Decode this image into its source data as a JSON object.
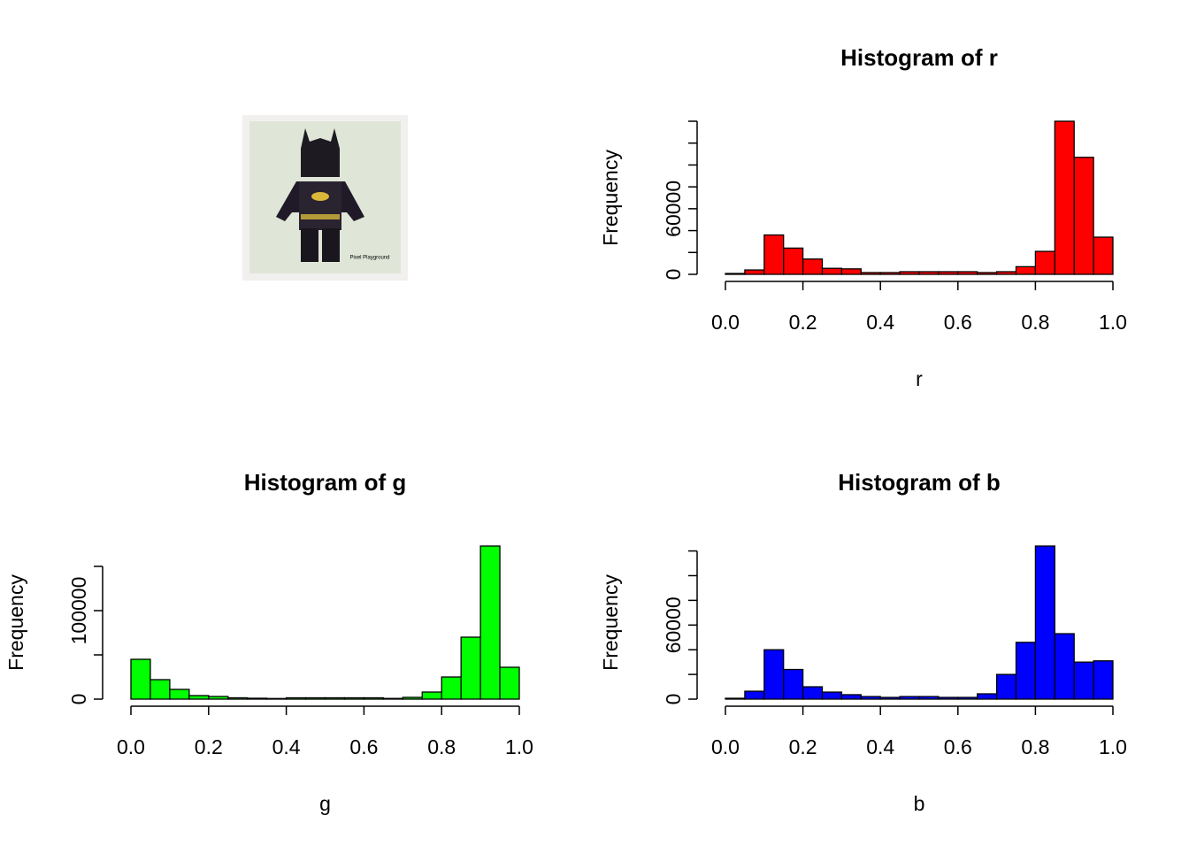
{
  "image": {
    "watermark": "Pixel Playground"
  },
  "chart_data": [
    {
      "type": "histogram",
      "title": "Histogram of r",
      "xlabel": "r",
      "ylabel": "Frequency",
      "color": "#ff0000",
      "bins": [
        0,
        0.05,
        0.1,
        0.15,
        0.2,
        0.25,
        0.3,
        0.35,
        0.4,
        0.45,
        0.5,
        0.55,
        0.6,
        0.65,
        0.7,
        0.75,
        0.8,
        0.85,
        0.9,
        0.95,
        1
      ],
      "values": [
        800,
        4000,
        36000,
        24000,
        14000,
        5500,
        5000,
        1600,
        1600,
        2400,
        2400,
        2400,
        2400,
        1600,
        2400,
        7000,
        21000,
        140000,
        107000,
        34000
      ],
      "xlim": [
        0,
        1
      ],
      "xticks": [
        {
          "value": 0,
          "label": "0.0"
        },
        0.2,
        0.4,
        0.6,
        0.8,
        {
          "value": 1,
          "label": "1.0"
        }
      ],
      "ylim": [
        0,
        140000
      ],
      "yticks": [
        0,
        60000
      ],
      "ytick_marks": [
        20000,
        40000,
        80000,
        100000,
        120000,
        140000
      ]
    },
    {
      "type": "histogram",
      "title": "Histogram of g",
      "xlabel": "g",
      "ylabel": "Frequency",
      "color": "#00ff00",
      "bins": [
        0,
        0.05,
        0.1,
        0.15,
        0.2,
        0.25,
        0.3,
        0.35,
        0.4,
        0.45,
        0.5,
        0.55,
        0.6,
        0.65,
        0.7,
        0.75,
        0.8,
        0.85,
        0.9,
        0.95,
        1
      ],
      "values": [
        45000,
        22000,
        11000,
        4000,
        3000,
        1500,
        1000,
        700,
        1500,
        1500,
        1500,
        1500,
        1500,
        800,
        2000,
        8000,
        25000,
        70000,
        173000,
        36000
      ],
      "xlim": [
        0,
        1
      ],
      "xticks": [
        {
          "value": 0,
          "label": "0.0"
        },
        0.2,
        0.4,
        0.6,
        0.8,
        {
          "value": 1,
          "label": "1.0"
        }
      ],
      "ylim": [
        0,
        173000
      ],
      "yticks": [
        0,
        100000
      ],
      "ytick_marks": [
        50000,
        150000
      ]
    },
    {
      "type": "histogram",
      "title": "Histogram of b",
      "xlabel": "b",
      "ylabel": "Frequency",
      "color": "#0000ff",
      "bins": [
        0,
        0.05,
        0.1,
        0.15,
        0.2,
        0.25,
        0.3,
        0.35,
        0.4,
        0.45,
        0.5,
        0.55,
        0.6,
        0.65,
        0.7,
        0.75,
        0.8,
        0.85,
        0.9,
        0.95,
        1
      ],
      "values": [
        700,
        6400,
        40000,
        24000,
        10000,
        5700,
        3600,
        2100,
        1400,
        2100,
        2100,
        1400,
        1400,
        4300,
        20000,
        46000,
        124000,
        53000,
        30000,
        31000
      ],
      "xlim": [
        0,
        1
      ],
      "xticks": [
        {
          "value": 0,
          "label": "0.0"
        },
        0.2,
        0.4,
        0.6,
        0.8,
        {
          "value": 1,
          "label": "1.0"
        }
      ],
      "ylim": [
        0,
        124000
      ],
      "yticks": [
        0,
        60000
      ],
      "ytick_marks": [
        20000,
        40000,
        80000,
        100000,
        120000
      ]
    }
  ]
}
